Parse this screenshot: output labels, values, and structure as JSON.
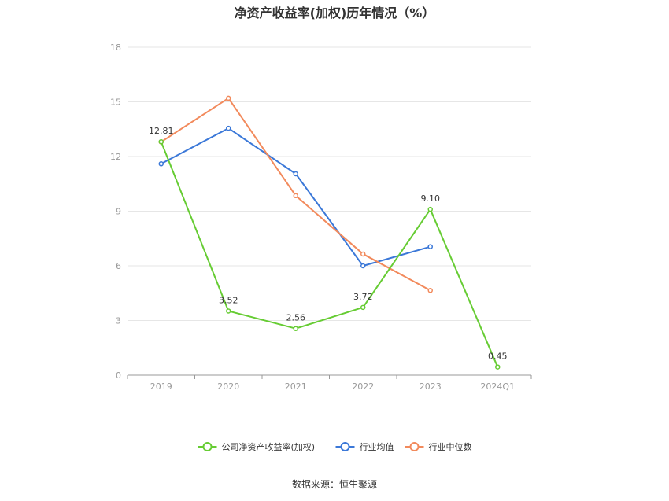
{
  "chart_data": {
    "type": "line",
    "title": "净资产收益率(加权)历年情况（%）",
    "categories": [
      "2019",
      "2020",
      "2021",
      "2022",
      "2023",
      "2024Q1"
    ],
    "y_ticks": [
      0,
      3,
      6,
      9,
      12,
      15,
      18
    ],
    "ylim": [
      0,
      18
    ],
    "grid": true,
    "legend_position": "bottom-center",
    "series": [
      {
        "name": "公司净资产收益率(加权)",
        "color": "#66cc33",
        "values": [
          12.81,
          3.52,
          2.56,
          3.72,
          9.1,
          0.45
        ],
        "labels": [
          "12.81",
          "3.52",
          "2.56",
          "3.72",
          "9.10",
          "0.45"
        ]
      },
      {
        "name": "行业均值",
        "color": "#3b78d8",
        "values": [
          11.6,
          13.55,
          11.05,
          6.0,
          7.05,
          null
        ]
      },
      {
        "name": "行业中位数",
        "color": "#f28a5c",
        "values": [
          12.8,
          15.2,
          9.85,
          6.65,
          4.65,
          null
        ]
      }
    ]
  },
  "source": "数据来源：恒生聚源"
}
